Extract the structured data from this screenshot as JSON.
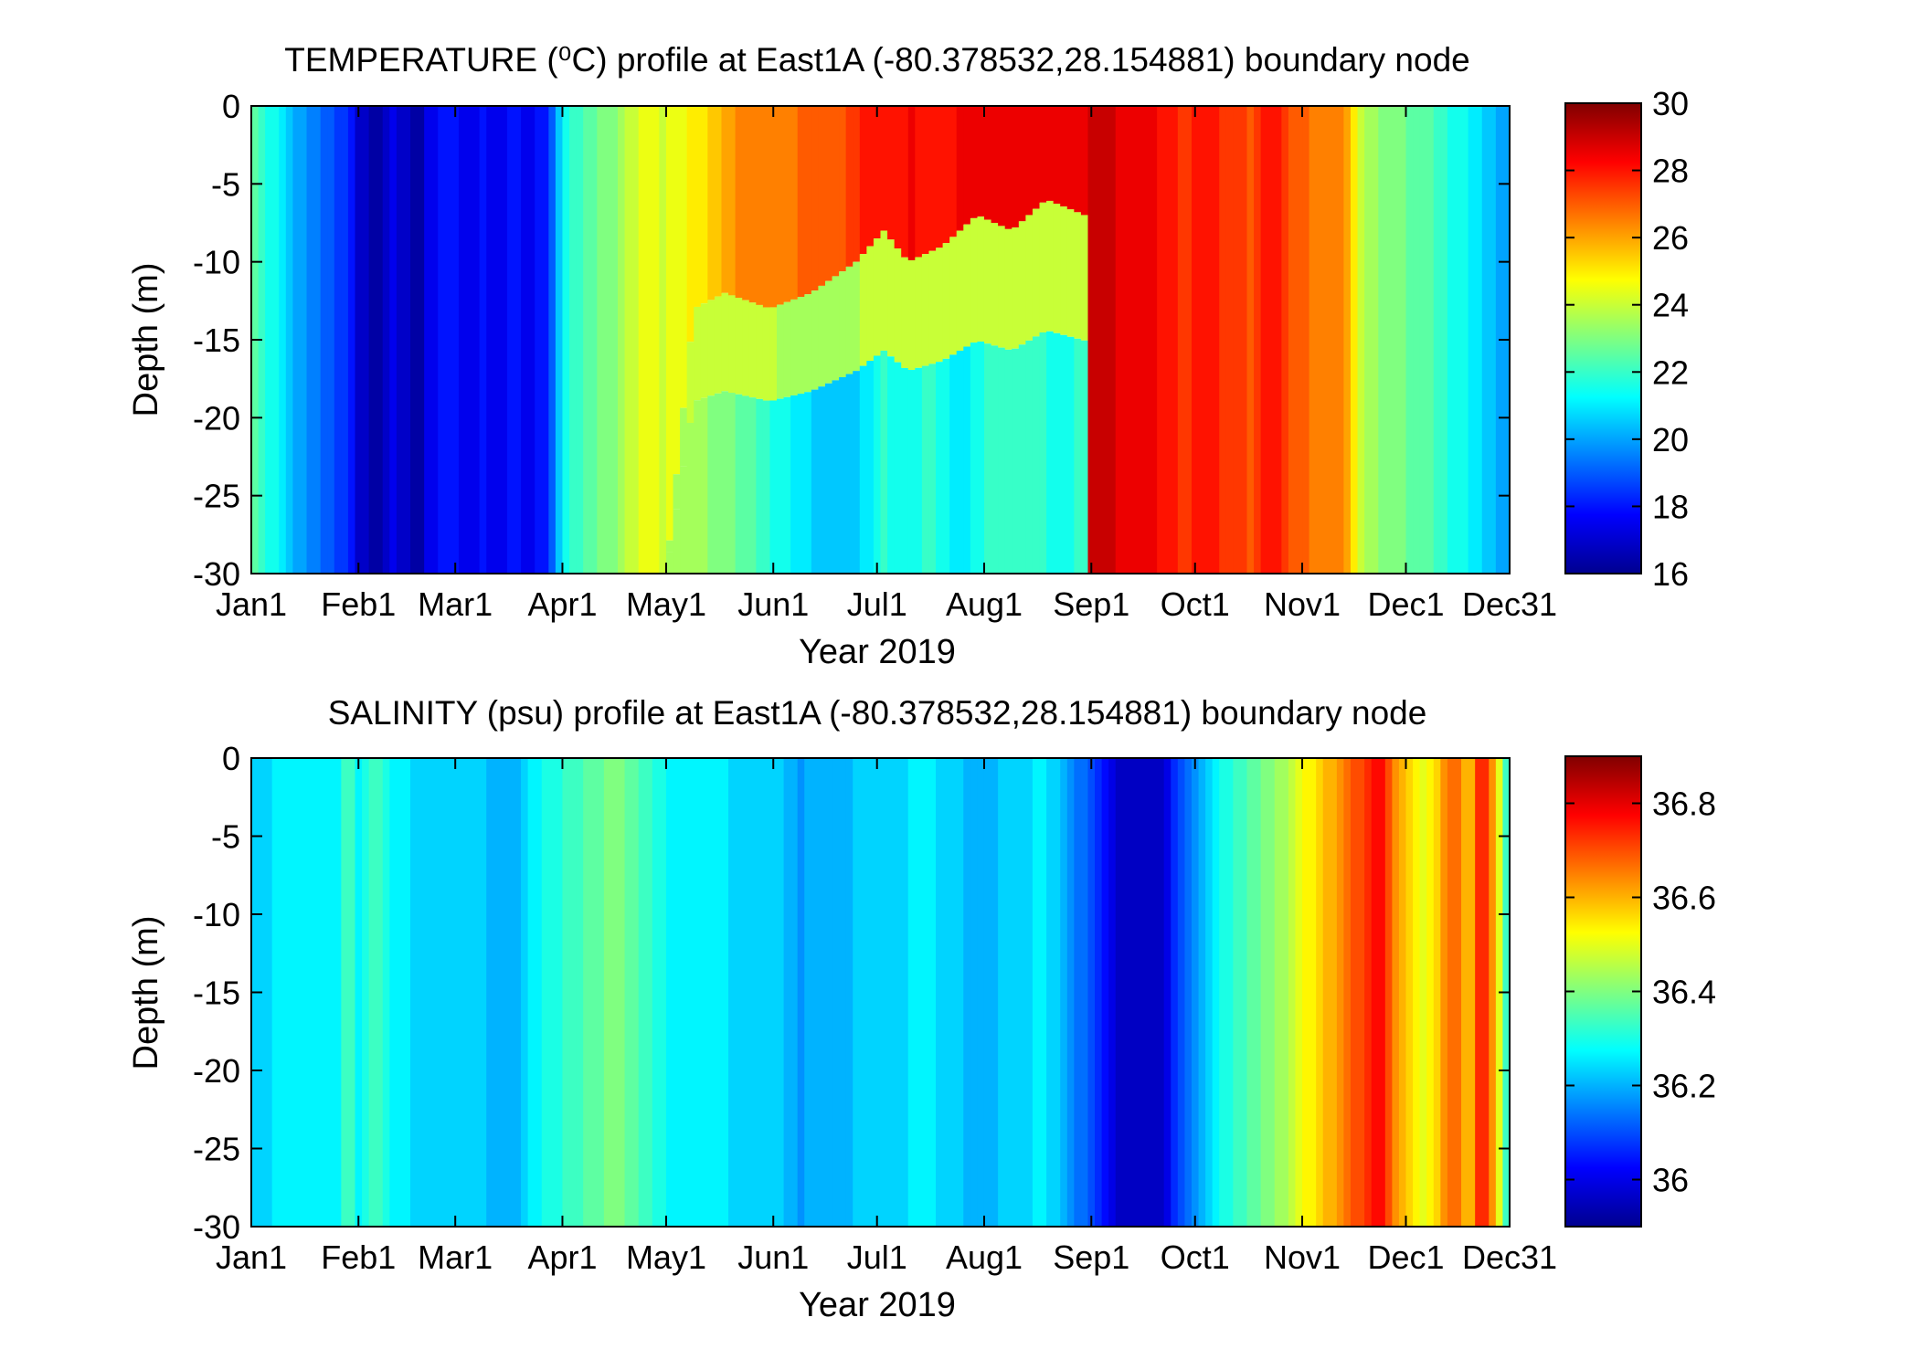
{
  "chart_data": [
    {
      "type": "heatmap",
      "title": "TEMPERATURE (⁰C) profile at  East1A (-80.378532,28.154881) boundary node",
      "xlabel": "Year 2019",
      "ylabel": "Depth (m)",
      "x_ticks": [
        "Jan1",
        "Feb1",
        "Mar1",
        "Apr1",
        "May1",
        "Jun1",
        "Jul1",
        "Aug1",
        "Sep1",
        "Oct1",
        "Nov1",
        "Dec1",
        "Dec31"
      ],
      "x_tick_days": [
        0,
        31,
        59,
        90,
        120,
        151,
        181,
        212,
        243,
        273,
        304,
        334,
        364
      ],
      "xlim": [
        0,
        364
      ],
      "ylim": [
        -30,
        0
      ],
      "y_ticks": [
        0,
        -5,
        -10,
        -15,
        -20,
        -25,
        -30
      ],
      "colorbar": {
        "range": [
          16,
          30
        ],
        "ticks": [
          30,
          28,
          26,
          24,
          22,
          20,
          18,
          16
        ],
        "colormap": "jet"
      },
      "surface_layer": [
        [
          0,
          22.5
        ],
        [
          3,
          22.0
        ],
        [
          8,
          21.2
        ],
        [
          14,
          20.0
        ],
        [
          22,
          19.0
        ],
        [
          29,
          18.0
        ],
        [
          31,
          17.2
        ],
        [
          36,
          16.4
        ],
        [
          41,
          17.5
        ],
        [
          44,
          17.0
        ],
        [
          48,
          16.3
        ],
        [
          52,
          17.6
        ],
        [
          58,
          18.2
        ],
        [
          62,
          17.2
        ],
        [
          66,
          17.9
        ],
        [
          71,
          17.3
        ],
        [
          76,
          18.0
        ],
        [
          81,
          17.4
        ],
        [
          86,
          18.4
        ],
        [
          88,
          19.8
        ],
        [
          92,
          21.8
        ],
        [
          99,
          22.6
        ],
        [
          104,
          23.0
        ],
        [
          112,
          24.4
        ],
        [
          120,
          24.2
        ],
        [
          127,
          24.8
        ],
        [
          132,
          25.2
        ],
        [
          138,
          26.2
        ],
        [
          150,
          26.6
        ],
        [
          160,
          26.8
        ],
        [
          172,
          27.2
        ],
        [
          177,
          28.0
        ],
        [
          184,
          28.1
        ],
        [
          191,
          28.3
        ],
        [
          199,
          28.0
        ],
        [
          208,
          28.4
        ],
        [
          216,
          28.5
        ],
        [
          224,
          28.6
        ],
        [
          234,
          28.4
        ],
        [
          240,
          28.6
        ],
        [
          243,
          29.0
        ],
        [
          248,
          28.8
        ],
        [
          255,
          28.6
        ],
        [
          262,
          28.3
        ],
        [
          270,
          27.6
        ],
        [
          277,
          28.0
        ],
        [
          283,
          27.4
        ],
        [
          289,
          27.2
        ],
        [
          296,
          28.2
        ],
        [
          300,
          27.0
        ],
        [
          308,
          26.6
        ],
        [
          316,
          26.4
        ],
        [
          322,
          23.6
        ],
        [
          330,
          23.0
        ],
        [
          336,
          22.6
        ],
        [
          342,
          22.2
        ],
        [
          348,
          21.6
        ],
        [
          353,
          21.2
        ],
        [
          357,
          20.6
        ],
        [
          361,
          20.2
        ],
        [
          364,
          20.0
        ]
      ],
      "thermocline_depth": [
        [
          0,
          -30
        ],
        [
          120,
          -30
        ],
        [
          128,
          -13
        ],
        [
          137,
          -12
        ],
        [
          150,
          -13
        ],
        [
          162,
          -12
        ],
        [
          175,
          -10
        ],
        [
          183,
          -8
        ],
        [
          190,
          -10
        ],
        [
          200,
          -9
        ],
        [
          210,
          -7
        ],
        [
          220,
          -8
        ],
        [
          230,
          -6
        ],
        [
          241,
          -7
        ],
        [
          242,
          -30
        ],
        [
          364,
          -30
        ]
      ],
      "bottom_layer": [
        [
          120,
          23.6
        ],
        [
          128,
          23.5
        ],
        [
          137,
          23.0
        ],
        [
          145,
          22.4
        ],
        [
          152,
          21.6
        ],
        [
          160,
          21.0
        ],
        [
          167,
          20.4
        ],
        [
          175,
          20.6
        ],
        [
          183,
          21.8
        ],
        [
          190,
          21.4
        ],
        [
          197,
          21.9
        ],
        [
          205,
          20.8
        ],
        [
          212,
          21.8
        ],
        [
          220,
          22.0
        ],
        [
          228,
          21.8
        ],
        [
          236,
          21.6
        ],
        [
          242,
          22.0
        ]
      ]
    },
    {
      "type": "heatmap",
      "title": "SALINITY (psu) profile at  East1A (-80.378532,28.154881) boundary node",
      "xlabel": "Year 2019",
      "ylabel": "Depth (m)",
      "x_ticks": [
        "Jan1",
        "Feb1",
        "Mar1",
        "Apr1",
        "May1",
        "Jun1",
        "Jul1",
        "Aug1",
        "Sep1",
        "Oct1",
        "Nov1",
        "Dec1",
        "Dec31"
      ],
      "x_tick_days": [
        0,
        31,
        59,
        90,
        120,
        151,
        181,
        212,
        243,
        273,
        304,
        334,
        364
      ],
      "xlim": [
        0,
        364
      ],
      "ylim": [
        -30,
        0
      ],
      "y_ticks": [
        0,
        -5,
        -10,
        -15,
        -20,
        -25,
        -30
      ],
      "colorbar": {
        "range": [
          35.9,
          36.9
        ],
        "ticks": [
          36.8,
          36.6,
          36.4,
          36.2,
          36
        ],
        "colormap": "jet"
      },
      "profile": [
        [
          0,
          36.24
        ],
        [
          25,
          36.28
        ],
        [
          28,
          36.38
        ],
        [
          31,
          36.26
        ],
        [
          36,
          36.36
        ],
        [
          40,
          36.26
        ],
        [
          78,
          36.2
        ],
        [
          80,
          36.26
        ],
        [
          105,
          36.4
        ],
        [
          124,
          36.26
        ],
        [
          150,
          36.24
        ],
        [
          158,
          36.18
        ],
        [
          195,
          36.26
        ],
        [
          210,
          36.2
        ],
        [
          230,
          36.26
        ],
        [
          243,
          36.1
        ],
        [
          252,
          35.96
        ],
        [
          262,
          35.95
        ],
        [
          270,
          36.12
        ],
        [
          278,
          36.26
        ],
        [
          285,
          36.32
        ],
        [
          295,
          36.4
        ],
        [
          305,
          36.52
        ],
        [
          320,
          36.7
        ],
        [
          326,
          36.78
        ],
        [
          332,
          36.62
        ],
        [
          340,
          36.5
        ],
        [
          348,
          36.7
        ],
        [
          352,
          36.56
        ],
        [
          356,
          36.78
        ],
        [
          360,
          36.6
        ],
        [
          364,
          36.26
        ]
      ]
    }
  ]
}
